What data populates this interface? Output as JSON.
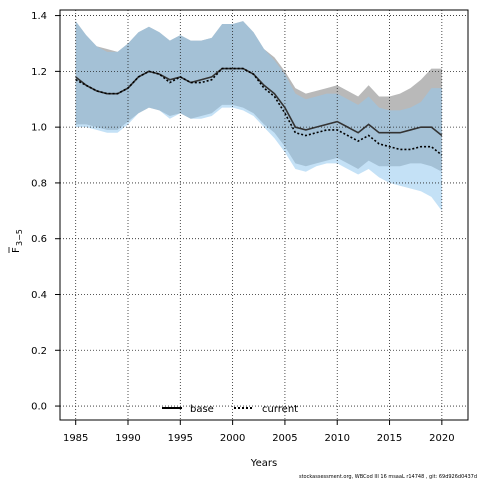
{
  "chart_data": {
    "type": "line",
    "xlabel": "Years",
    "ylabel_main": "F",
    "ylabel_sub": "3−5",
    "xlim": [
      1983.5,
      2022.5
    ],
    "ylim": [
      -0.05,
      1.42
    ],
    "xticks": [
      1985,
      1990,
      1995,
      2000,
      2005,
      2010,
      2015,
      2020
    ],
    "yticks": [
      0.0,
      0.2,
      0.4,
      0.6,
      0.8,
      1.0,
      1.2,
      1.4
    ],
    "ytick_labels": [
      "0.0",
      "0.2",
      "0.4",
      "0.6",
      "0.8",
      "1.0",
      "1.2",
      "1.4"
    ],
    "grid": true,
    "legend_position": "bottom",
    "x": [
      1985,
      1986,
      1987,
      1988,
      1989,
      1990,
      1991,
      1992,
      1993,
      1994,
      1995,
      1996,
      1997,
      1998,
      1999,
      2000,
      2001,
      2002,
      2003,
      2004,
      2005,
      2006,
      2007,
      2008,
      2009,
      2010,
      2011,
      2012,
      2013,
      2014,
      2015,
      2016,
      2017,
      2018,
      2019,
      2020
    ],
    "series": [
      {
        "name": "base",
        "line_style": "solid",
        "line_color": "#333333",
        "band_color": "#a8a8a8",
        "values": [
          1.18,
          1.15,
          1.13,
          1.12,
          1.12,
          1.14,
          1.18,
          1.2,
          1.19,
          1.17,
          1.18,
          1.16,
          1.17,
          1.18,
          1.21,
          1.21,
          1.21,
          1.19,
          1.15,
          1.12,
          1.07,
          1.0,
          0.99,
          1.0,
          1.01,
          1.02,
          1.0,
          0.98,
          1.01,
          0.98,
          0.98,
          0.98,
          0.99,
          1.0,
          1.0,
          0.97
        ],
        "lower": [
          1.01,
          1.01,
          1.0,
          0.99,
          0.99,
          1.02,
          1.05,
          1.07,
          1.06,
          1.04,
          1.05,
          1.03,
          1.04,
          1.05,
          1.08,
          1.08,
          1.07,
          1.05,
          1.01,
          0.98,
          0.93,
          0.87,
          0.86,
          0.87,
          0.88,
          0.89,
          0.87,
          0.85,
          0.88,
          0.86,
          0.86,
          0.86,
          0.87,
          0.87,
          0.86,
          0.84
        ],
        "upper": [
          1.38,
          1.33,
          1.29,
          1.28,
          1.27,
          1.3,
          1.34,
          1.36,
          1.34,
          1.31,
          1.33,
          1.31,
          1.31,
          1.32,
          1.37,
          1.37,
          1.38,
          1.34,
          1.28,
          1.25,
          1.2,
          1.14,
          1.12,
          1.13,
          1.14,
          1.15,
          1.13,
          1.11,
          1.15,
          1.11,
          1.11,
          1.12,
          1.14,
          1.17,
          1.21,
          1.21
        ]
      },
      {
        "name": "current",
        "line_style": "dotted",
        "line_color": "#000000",
        "band_color": "#93c9ef",
        "values": [
          1.17,
          1.15,
          1.13,
          1.12,
          1.12,
          1.14,
          1.18,
          1.2,
          1.19,
          1.16,
          1.18,
          1.16,
          1.16,
          1.17,
          1.21,
          1.21,
          1.21,
          1.19,
          1.14,
          1.11,
          1.05,
          0.98,
          0.97,
          0.98,
          0.99,
          0.99,
          0.97,
          0.95,
          0.97,
          0.94,
          0.93,
          0.92,
          0.92,
          0.93,
          0.93,
          0.9
        ],
        "lower": [
          1.0,
          1.0,
          0.99,
          0.98,
          0.98,
          1.01,
          1.05,
          1.07,
          1.06,
          1.03,
          1.05,
          1.03,
          1.03,
          1.04,
          1.07,
          1.07,
          1.06,
          1.04,
          1.0,
          0.96,
          0.91,
          0.85,
          0.84,
          0.86,
          0.87,
          0.87,
          0.85,
          0.83,
          0.85,
          0.82,
          0.8,
          0.79,
          0.78,
          0.77,
          0.75,
          0.7
        ],
        "upper": [
          1.38,
          1.33,
          1.29,
          1.27,
          1.27,
          1.3,
          1.34,
          1.36,
          1.34,
          1.31,
          1.33,
          1.31,
          1.31,
          1.32,
          1.37,
          1.37,
          1.38,
          1.34,
          1.28,
          1.24,
          1.19,
          1.12,
          1.1,
          1.11,
          1.12,
          1.12,
          1.1,
          1.08,
          1.11,
          1.07,
          1.06,
          1.06,
          1.07,
          1.09,
          1.14,
          1.14
        ]
      }
    ]
  },
  "footer": {
    "note": "stockassessment.org, WBCod III 16 msaaL r14748 , git: 69d926d0437d"
  }
}
